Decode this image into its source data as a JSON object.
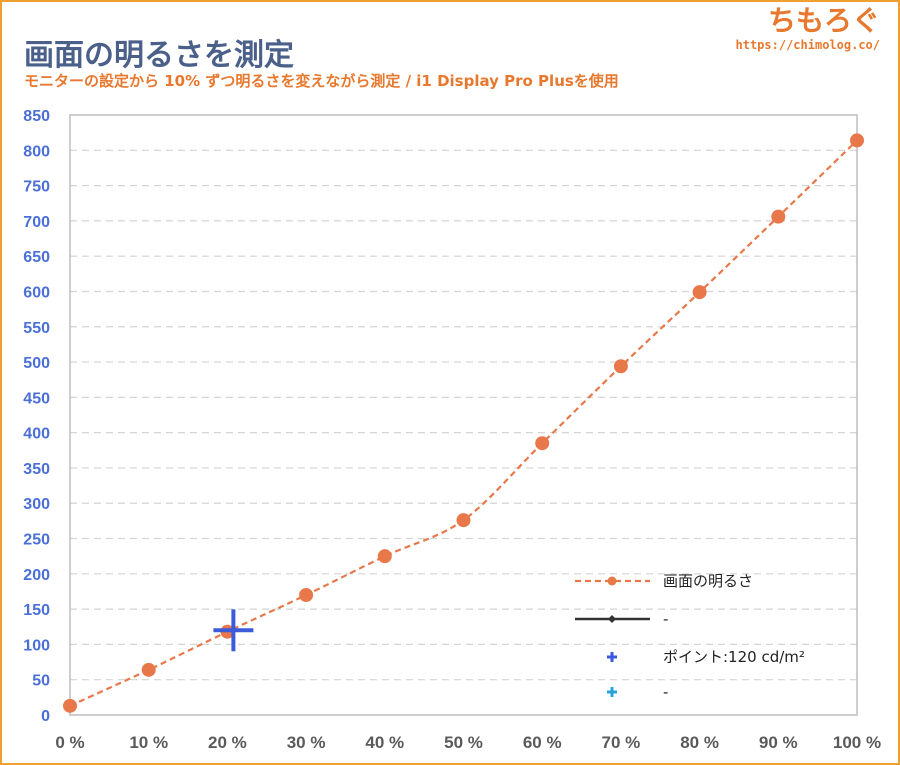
{
  "header": {
    "title": "画面の明るさを測定",
    "subtitle": "モニターの設定から 10% ずつ明るさを変えながら測定 / i1 Display Pro Plusを使用",
    "brand_name": "ちもろぐ",
    "brand_url": "https://chimolog.co/"
  },
  "colors": {
    "series_main": "#e8784a",
    "marker_blue": "#3b5bdb",
    "marker_cyan": "#2aa3d9",
    "legend_dark": "#333333",
    "ytick": "#4a6fd6",
    "xtick": "#5a5a5a",
    "grid": "#d4d4d4",
    "frame": "#f0a030"
  },
  "chart_data": {
    "type": "line",
    "title": "画面の明るさを測定",
    "subtitle": "モニターの設定から 10% ずつ明るさを変えながら測定 / i1 Display Pro Plusを使用",
    "xlabel": "",
    "ylabel": "",
    "categories": [
      "0 %",
      "10 %",
      "20 %",
      "30 %",
      "40 %",
      "50 %",
      "60 %",
      "70 %",
      "80 %",
      "90 %",
      "100 %"
    ],
    "ylim": [
      0,
      850
    ],
    "yticks": [
      0,
      50,
      100,
      150,
      200,
      250,
      300,
      350,
      400,
      450,
      500,
      550,
      600,
      650,
      700,
      750,
      800,
      850
    ],
    "grid": true,
    "legend_position": "bottom-right",
    "series": [
      {
        "name": "画面の明るさ",
        "style": "dashed line with circle markers",
        "values": [
          13,
          64,
          118,
          170,
          225,
          276,
          385,
          494,
          599,
          706,
          814
        ]
      }
    ],
    "annotations": [
      {
        "label": "ポイント:120 cd/m²",
        "x": "20 %",
        "y": 120,
        "marker": "plus"
      }
    ],
    "legend": [
      {
        "label": "画面の明るさ",
        "kind": "line-dot-dashed"
      },
      {
        "label": "-",
        "kind": "line-diamond"
      },
      {
        "label": "ポイント:120 cd/m²",
        "kind": "plus-blue"
      },
      {
        "label": "-",
        "kind": "plus-cyan"
      }
    ]
  }
}
